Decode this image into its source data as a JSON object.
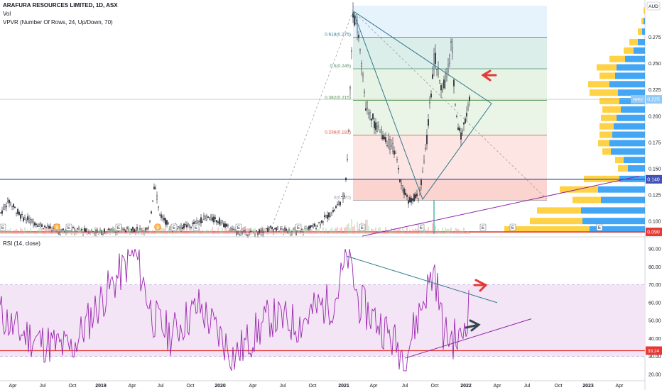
{
  "header": {
    "symbol": "ARAFURA RESOURCES LIMITED, 1D, ASX",
    "vol": "Vol",
    "vpvr": "VPVR (Number Of Rows, 24, Up/Down, 70)",
    "rsi": "RSI (14, close)"
  },
  "currency": "AUD",
  "colors": {
    "up": "#26a69a",
    "down": "#ef5350",
    "candle": "#1e222d",
    "rsi_line": "#9c27b0",
    "rsi_band": "#e1bee7",
    "support_red": "#e53935",
    "support_blue": "#3f51b5",
    "trend_teal": "#2f7a8c",
    "trend_purple": "#8e24aa",
    "vpvr_up": "#2196f3",
    "vpvr_down": "#ffc107"
  },
  "chart_data": [
    {
      "type": "candlestick",
      "name": "price",
      "ylim": [
        0.088,
        0.305
      ],
      "y_ticks": [
        "0.275",
        "0.250",
        "0.225",
        "0.200",
        "0.175",
        "0.150",
        "0.125",
        "0.100"
      ],
      "x_ticks": [
        "Apr",
        "Jul",
        "Oct",
        "2019",
        "Apr",
        "Jul",
        "Oct",
        "2020",
        "Apr",
        "Jul",
        "Oct",
        "2021",
        "Apr",
        "Jul",
        "Oct",
        "2022",
        "Apr",
        "Jul",
        "Oct",
        "2023",
        "Apr"
      ],
      "last_price_label": {
        "tag": "ARU",
        "value": "0.225"
      },
      "level_labels": [
        "0.140",
        "0.090"
      ],
      "fib_levels": [
        {
          "label": "0.618(0.275)",
          "value": 0.275
        },
        {
          "label": "0.5(0.245)",
          "value": 0.245
        },
        {
          "label": "0.382(0.215)",
          "value": 0.215
        },
        {
          "label": "0.236(0.182)",
          "value": 0.182
        },
        {
          "label": "0(0.120)",
          "value": 0.12
        }
      ],
      "horizontal_levels": [
        0.14,
        0.09
      ],
      "event_markers": [
        "E",
        "E",
        "E",
        "E",
        "E",
        "E",
        "E",
        "E",
        "E",
        "E",
        "E",
        "E",
        "E"
      ],
      "dividend_markers": [
        "$",
        "$"
      ]
    },
    {
      "type": "line",
      "name": "RSI (14, close)",
      "ylim": [
        18,
        92
      ],
      "y_ticks": [
        "90.00",
        "80.00",
        "70.00",
        "60.00",
        "50.00",
        "40.00",
        "30.00",
        "20.00"
      ],
      "band": [
        30,
        70
      ],
      "current_label": "33.24",
      "current_value": 33.24
    }
  ]
}
